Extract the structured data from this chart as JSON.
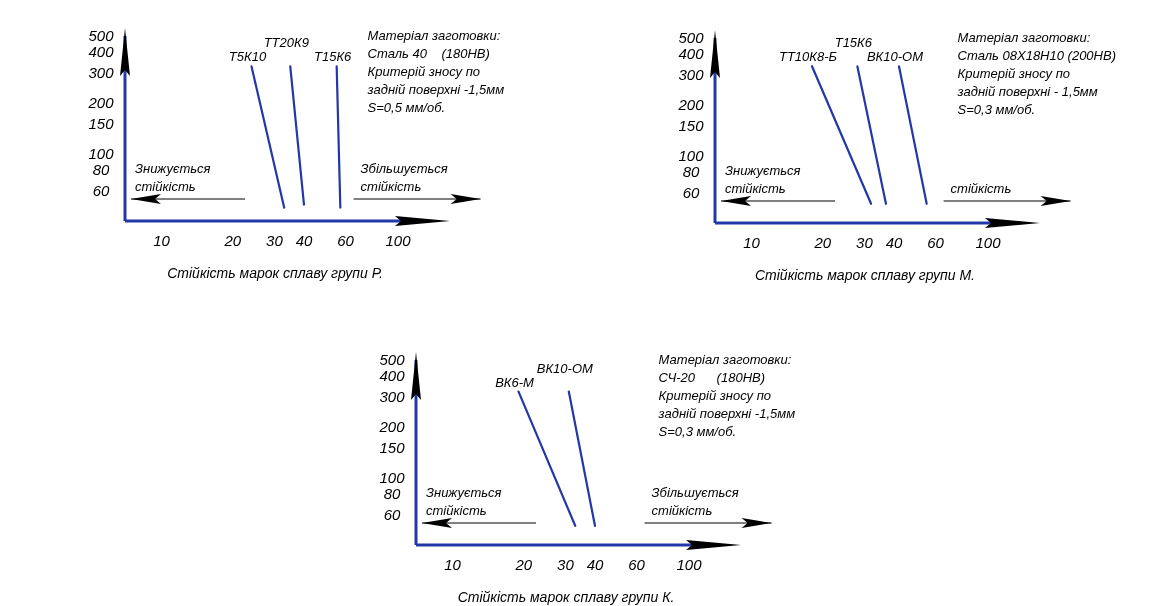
{
  "chart_data": [
    {
      "type": "line",
      "log": "xy",
      "xlabel": "Стійкість марок сплаву групи Р.",
      "xlim": [
        7,
        130
      ],
      "xticks": [
        10,
        20,
        30,
        40,
        60,
        100
      ],
      "ylim": [
        40,
        500
      ],
      "yticks": [
        60,
        80,
        100,
        150,
        200,
        300,
        400,
        500
      ],
      "series": [
        {
          "name": "Т5К10",
          "color": "#2338a8",
          "x": [
            24,
            33
          ],
          "values": [
            330,
            48
          ]
        },
        {
          "name": "ТТ20К9",
          "color": "#2338a8",
          "x": [
            35,
            40
          ],
          "values": [
            330,
            50
          ]
        },
        {
          "name": "Т15К6",
          "color": "#2338a8",
          "x": [
            55,
            57
          ],
          "values": [
            330,
            48
          ]
        }
      ],
      "annotations": [
        "Знижується\nстійкість",
        "Збільшується\nстійкість",
        "Матеріал заготовки:\nСталь 40    (180НВ)\nКритерій зносу по\nзадній поверхні -1,5мм\nS=0,5 мм/об."
      ]
    },
    {
      "type": "line",
      "log": "xy",
      "xlabel": "Стійкість марок сплаву групи М.",
      "xlim": [
        7,
        130
      ],
      "xticks": [
        10,
        20,
        30,
        40,
        60,
        100
      ],
      "ylim": [
        40,
        500
      ],
      "yticks": [
        60,
        80,
        100,
        150,
        200,
        300,
        400,
        500
      ],
      "series": [
        {
          "name": "ТТ10К8-Б",
          "color": "#2338a8",
          "x": [
            18,
            32
          ],
          "values": [
            340,
            52
          ]
        },
        {
          "name": "Т15К6",
          "color": "#2338a8",
          "x": [
            28,
            37
          ],
          "values": [
            340,
            52
          ]
        },
        {
          "name": "ВК10-ОМ",
          "color": "#2338a8",
          "x": [
            42,
            55
          ],
          "values": [
            340,
            52
          ]
        }
      ],
      "annotations": [
        "Знижується\nстійкість",
        "стійкість",
        "Матеріал заготовки:\nСталь 08Х18Н10 (200НВ)\nКритерій зносу по\nзадній поверхні - 1,5мм\nS=0,3 мм/об."
      ]
    },
    {
      "type": "line",
      "log": "xy",
      "xlabel": "Стійкість марок сплаву групи К.",
      "xlim": [
        7,
        130
      ],
      "xticks": [
        10,
        20,
        30,
        40,
        60,
        100
      ],
      "ylim": [
        40,
        500
      ],
      "yticks": [
        60,
        80,
        100,
        150,
        200,
        300,
        400,
        500
      ],
      "series": [
        {
          "name": "ВК6-М",
          "color": "#2338a8",
          "x": [
            19,
            33
          ],
          "values": [
            325,
            52
          ]
        },
        {
          "name": "ВК10-ОМ",
          "color": "#2338a8",
          "x": [
            31,
            40
          ],
          "values": [
            325,
            52
          ]
        }
      ],
      "annotations": [
        "Знижується\nстійкість",
        "Збільшується\nстійкість",
        "Матеріал заготовки:\nСЧ-20      (180НВ)\nКритерій зносу по\nзадній поверхні -1,5мм\nS=0,3 мм/об."
      ]
    }
  ]
}
